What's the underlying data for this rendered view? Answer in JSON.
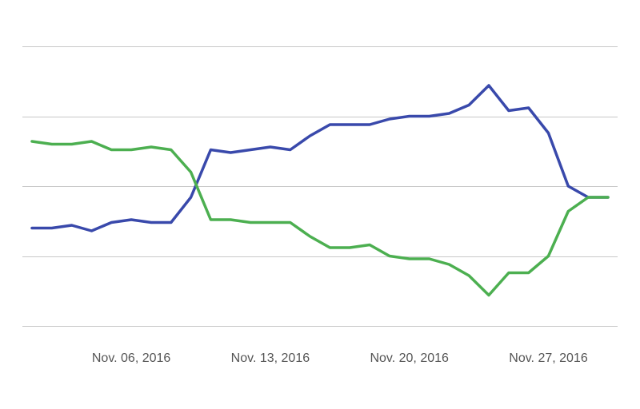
{
  "chart_data": {
    "type": "line",
    "title": "",
    "xlabel": "",
    "ylabel": "",
    "x": [
      "2016-11-01",
      "2016-11-02",
      "2016-11-03",
      "2016-11-04",
      "2016-11-05",
      "2016-11-06",
      "2016-11-07",
      "2016-11-08",
      "2016-11-09",
      "2016-11-10",
      "2016-11-11",
      "2016-11-12",
      "2016-11-13",
      "2016-11-14",
      "2016-11-15",
      "2016-11-16",
      "2016-11-17",
      "2016-11-18",
      "2016-11-19",
      "2016-11-20",
      "2016-11-21",
      "2016-11-22",
      "2016-11-23",
      "2016-11-24",
      "2016-11-25",
      "2016-11-26",
      "2016-11-27",
      "2016-11-28",
      "2016-11-29",
      "2016-11-30"
    ],
    "x_ticks": [
      {
        "at": "2016-11-06",
        "label": "Nov. 06, 2016"
      },
      {
        "at": "2016-11-13",
        "label": "Nov. 13, 2016"
      },
      {
        "at": "2016-11-20",
        "label": "Nov. 20, 2016"
      },
      {
        "at": "2016-11-27",
        "label": "Nov. 27, 2016"
      }
    ],
    "ylim": [
      0,
      100
    ],
    "y_gridlines": [
      0,
      25,
      50,
      75,
      100
    ],
    "grid": true,
    "legend": "none",
    "series": [
      {
        "color": "#3949ab",
        "values": [
          35,
          35,
          36,
          34,
          37,
          38,
          37,
          37,
          46,
          63,
          62,
          63,
          64,
          63,
          68,
          72,
          72,
          72,
          74,
          75,
          75,
          76,
          79,
          86,
          77,
          78,
          69,
          50,
          46,
          46
        ]
      },
      {
        "color": "#4caf50",
        "values": [
          66,
          65,
          65,
          66,
          63,
          63,
          64,
          63,
          55,
          38,
          38,
          37,
          37,
          37,
          32,
          28,
          28,
          29,
          25,
          24,
          24,
          22,
          18,
          11,
          19,
          19,
          25,
          41,
          46,
          46
        ]
      }
    ]
  }
}
